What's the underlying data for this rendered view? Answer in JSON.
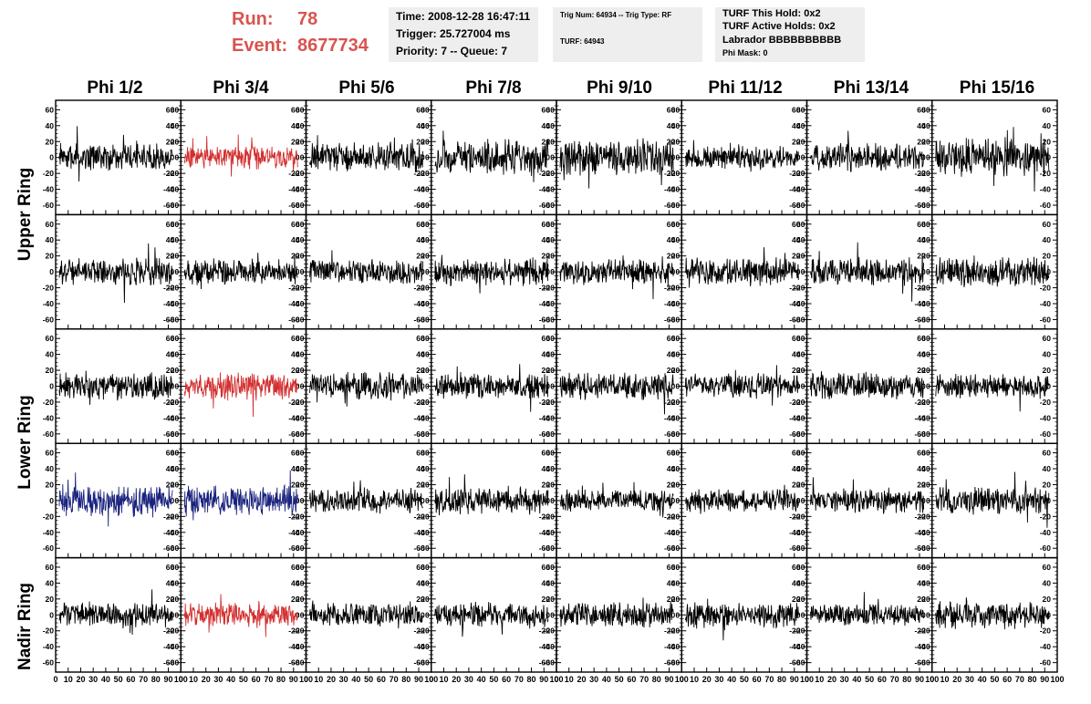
{
  "header": {
    "run_label": "Run:",
    "run_value": "78",
    "event_label": "Event:",
    "event_value": "8677734"
  },
  "box1": {
    "time": "Time: 2008-12-28 16:47:11",
    "trigger": "Trigger: 25.727004 ms",
    "priority": "Priority: 7 -- Queue: 7"
  },
  "box2": {
    "trig": "Trig Num: 64934 -- Trig Type: RF",
    "turf": "TURF: 64943"
  },
  "box3": {
    "this_hold": "TURF This Hold: 0x2",
    "active_holds": "TURF Active Holds: 0x2",
    "labrador": "Labrador BBBBBBBBBB",
    "phi_mask": "Phi Mask: 0"
  },
  "phi_titles": [
    "Phi 1/2",
    "Phi 3/4",
    "Phi 5/6",
    "Phi 7/8",
    "Phi 9/10",
    "Phi 11/12",
    "Phi 13/14",
    "Phi 15/16"
  ],
  "ring_labels": {
    "upper": "Upper Ring",
    "lower": "Lower Ring",
    "nadir": "Nadir Ring"
  },
  "colors": {
    "default": "#000000",
    "red": "#d32f2f",
    "blue": "#1a237e",
    "title_red": "#d9534f"
  },
  "chart_data": {
    "type": "line",
    "layout": "5 rows x 8 columns of waveform panels",
    "rows": 5,
    "cols": 8,
    "x": {
      "ticks": [
        0,
        10,
        20,
        30,
        40,
        50,
        60,
        70,
        80,
        90,
        100
      ],
      "range": [
        0,
        100
      ]
    },
    "y": {
      "ticks": [
        -60,
        -40,
        -20,
        0,
        20,
        40,
        60
      ],
      "range": [
        -65,
        65
      ]
    },
    "ylim": [
      -65,
      65
    ],
    "highlighted_panels": [
      {
        "row": 0,
        "col": 1,
        "color": "red"
      },
      {
        "row": 2,
        "col": 1,
        "color": "red"
      },
      {
        "row": 3,
        "col": 0,
        "color": "blue"
      },
      {
        "row": 3,
        "col": 1,
        "color": "blue"
      },
      {
        "row": 4,
        "col": 1,
        "color": "red"
      }
    ],
    "amplitudes": [
      [
        13,
        11,
        14,
        16,
        17,
        11,
        13,
        18
      ],
      [
        13,
        13,
        12,
        13,
        12,
        13,
        13,
        15
      ],
      [
        13,
        13,
        13,
        12,
        13,
        12,
        13,
        12
      ],
      [
        15,
        14,
        12,
        13,
        10,
        11,
        12,
        13
      ],
      [
        12,
        11,
        12,
        12,
        12,
        12,
        11,
        13
      ]
    ]
  }
}
